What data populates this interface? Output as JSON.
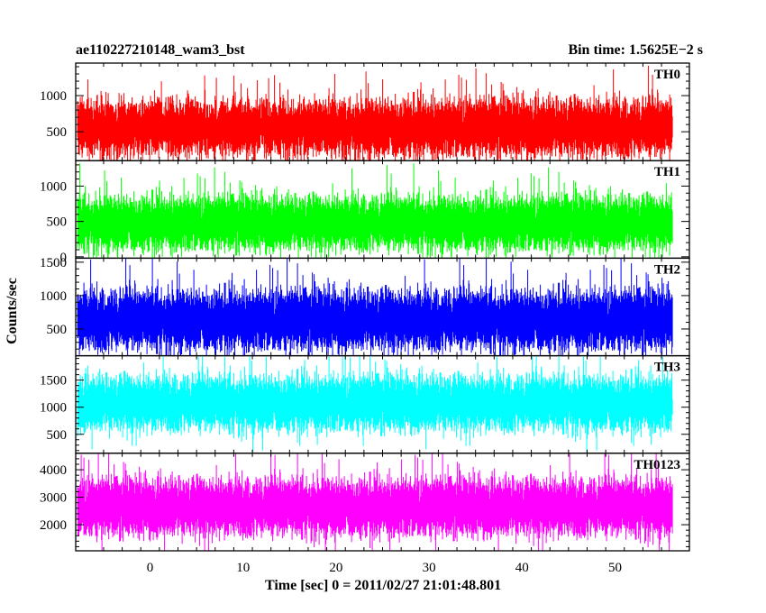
{
  "header": {
    "title": "ae110227210148_wam3_bst",
    "bin_time": "Bin time: 1.5625E−2 s"
  },
  "chart_data": {
    "type": "line",
    "xlabel": "Time [sec] 0 = 2011/02/27 21:01:48.801",
    "ylabel": "Counts/sec",
    "xlim": [
      -8,
      58
    ],
    "x_data_range": [
      -7.8,
      56.2
    ],
    "x_ticks": [
      "0",
      "10",
      "20",
      "30",
      "40",
      "50"
    ],
    "panels": [
      {
        "name": "TH0",
        "color": "#ff0000",
        "ylim": [
          100,
          1450
        ],
        "y_ticks": [
          "500",
          "1000"
        ],
        "typical_range": [
          120,
          1100
        ],
        "mean": 560
      },
      {
        "name": "TH1",
        "color": "#00ff00",
        "ylim": [
          -20,
          1360
        ],
        "y_ticks": [
          "0",
          "500",
          "1000"
        ],
        "typical_range": [
          60,
          1000
        ],
        "mean": 480
      },
      {
        "name": "TH2",
        "color": "#0000ff",
        "ylim": [
          100,
          1560
        ],
        "y_ticks": [
          "500",
          "1000",
          "1500"
        ],
        "typical_range": [
          150,
          1250
        ],
        "mean": 640
      },
      {
        "name": "TH3",
        "color": "#00ffff",
        "ylim": [
          150,
          1950
        ],
        "y_ticks": [
          "500",
          "1000",
          "1500"
        ],
        "typical_range": [
          500,
          1750
        ],
        "mean": 1080
      },
      {
        "name": "TH0123",
        "color": "#ff00ff",
        "ylim": [
          1050,
          4600
        ],
        "y_ticks": [
          "2000",
          "3000",
          "4000"
        ],
        "typical_range": [
          1450,
          4000
        ],
        "mean": 2650
      }
    ]
  }
}
